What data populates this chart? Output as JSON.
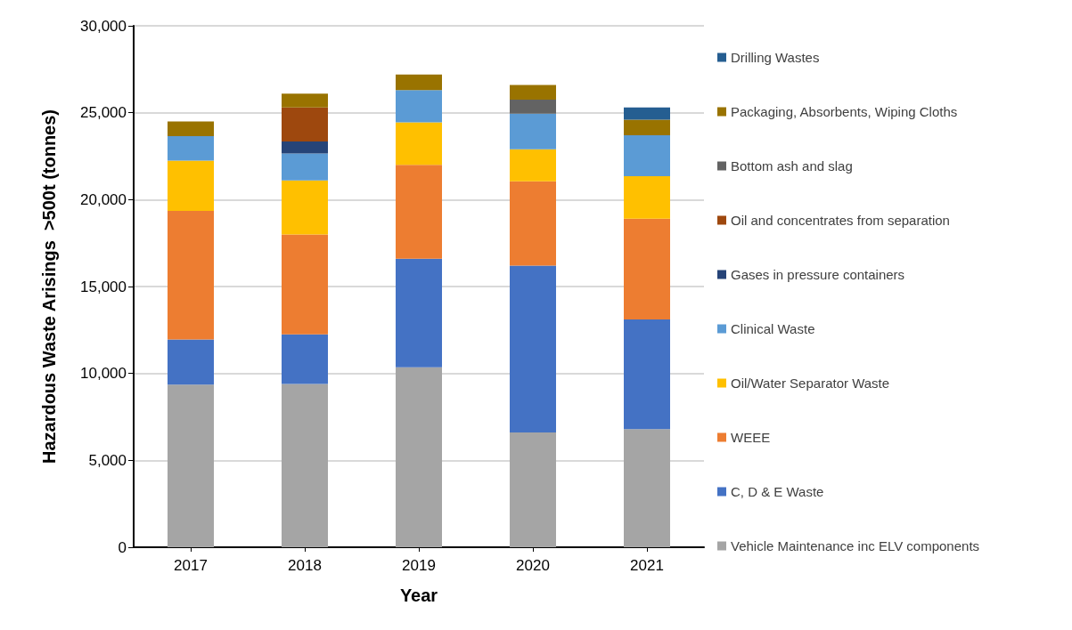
{
  "chart_data": {
    "type": "bar",
    "stacked": true,
    "xlabel": "Year",
    "ylabel": "Hazardous Waste Arisings  >500t (tonnes)",
    "categories": [
      "2017",
      "2018",
      "2019",
      "2020",
      "2021"
    ],
    "series": [
      {
        "name": "Vehicle Maintenance inc ELV components",
        "color": "#a5a5a5",
        "values": [
          9350,
          9400,
          10350,
          6600,
          6800
        ]
      },
      {
        "name": "C, D & E Waste",
        "color": "#4472c4",
        "values": [
          2600,
          2850,
          6250,
          9600,
          6300
        ]
      },
      {
        "name": "WEEE",
        "color": "#ed7d31",
        "values": [
          7400,
          5750,
          5400,
          4850,
          5800
        ]
      },
      {
        "name": "Oil/Water Separator Waste",
        "color": "#ffc000",
        "values": [
          2900,
          3100,
          2450,
          1850,
          2450
        ]
      },
      {
        "name": "Clinical Waste",
        "color": "#5b9bd5",
        "values": [
          1400,
          1550,
          1850,
          2050,
          2350
        ]
      },
      {
        "name": "Gases in pressure containers",
        "color": "#264478",
        "values": [
          null,
          700,
          null,
          null,
          null
        ]
      },
      {
        "name": "Oil and concentrates from separation",
        "color": "#9e480e",
        "values": [
          null,
          1950,
          null,
          null,
          null
        ]
      },
      {
        "name": "Bottom ash and slag",
        "color": "#636363",
        "values": [
          null,
          null,
          null,
          800,
          null
        ]
      },
      {
        "name": "Packaging, Absorbents, Wiping Cloths",
        "color": "#997300",
        "values": [
          850,
          800,
          900,
          850,
          900
        ]
      },
      {
        "name": "Drilling Wastes",
        "color": "#255e91",
        "values": [
          null,
          null,
          null,
          null,
          700
        ]
      }
    ],
    "ylim": [
      0,
      30000
    ],
    "yticks": [
      0,
      {
        "value": 5000,
        "label": "5,000"
      },
      {
        "value": 10000,
        "label": "10,000"
      },
      {
        "value": 15000,
        "label": "15,000"
      },
      {
        "value": 20000,
        "label": "20,000"
      },
      {
        "value": 25000,
        "label": "25,000"
      },
      {
        "value": 30000,
        "label": "30,000"
      }
    ],
    "grid": "y",
    "legend": "right"
  }
}
